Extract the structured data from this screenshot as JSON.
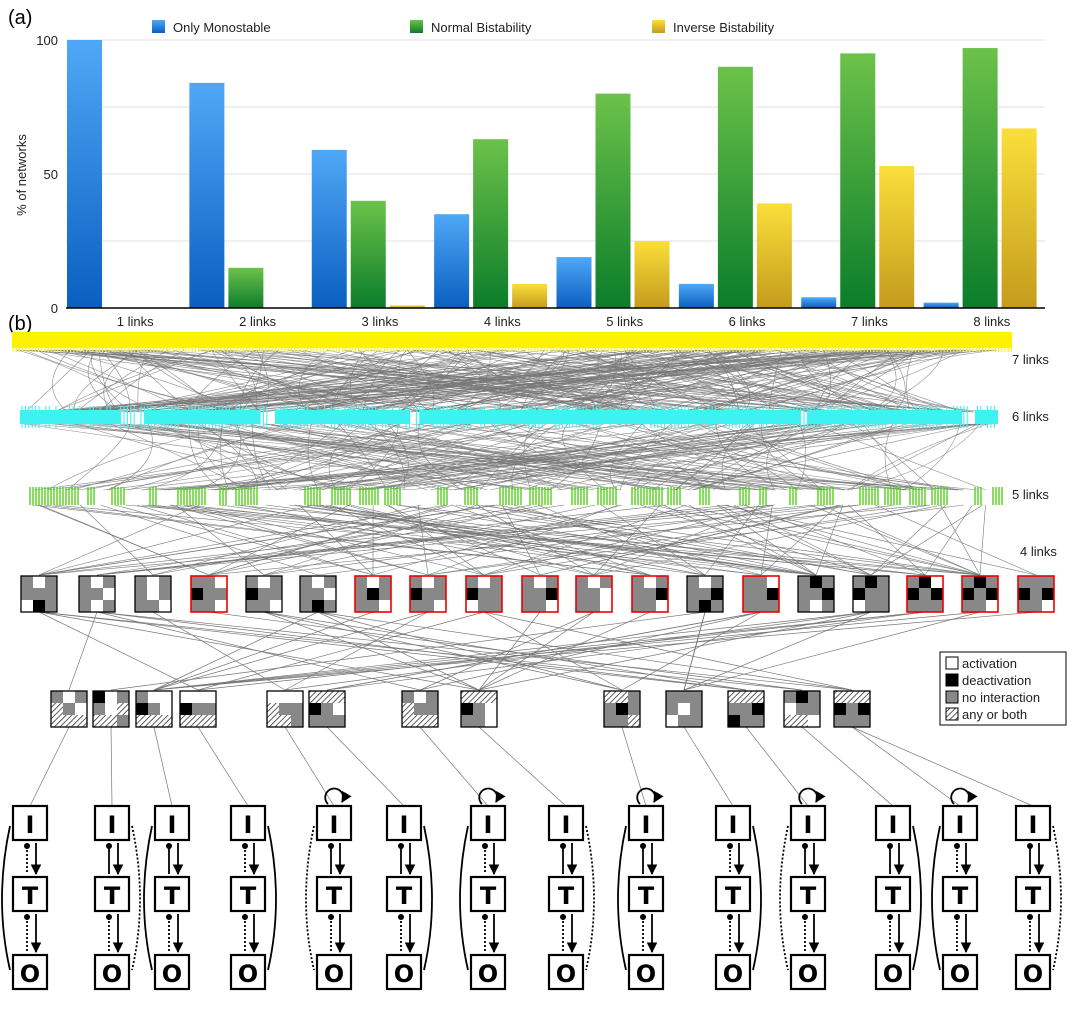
{
  "panel_labels": {
    "a": "(a)",
    "b": "(b)"
  },
  "chart_data": {
    "type": "bar",
    "categories": [
      "1 links",
      "2 links",
      "3 links",
      "4 links",
      "5 links",
      "6 links",
      "7 links",
      "8 links"
    ],
    "series": [
      {
        "name": "Only Monostable",
        "values": [
          100,
          84,
          59,
          35,
          19,
          9,
          4,
          2
        ]
      },
      {
        "name": "Normal Bistability",
        "values": [
          0,
          15,
          40,
          63,
          80,
          90,
          95,
          97
        ]
      },
      {
        "name": "Inverse Bistability",
        "values": [
          0,
          0,
          1,
          9,
          25,
          39,
          53,
          67
        ]
      }
    ],
    "ylabel": "% of networks",
    "ylim": [
      0,
      100
    ],
    "yticks": [
      "0",
      "50",
      "100"
    ],
    "grid": true,
    "legend_position": "top",
    "colors": {
      "Only Monostable": [
        "#4fa8f7",
        "#0a5fc0"
      ],
      "Normal Bistability": [
        "#6cc24a",
        "#0b7d2a"
      ],
      "Inverse Bistability": [
        "#fadf3a",
        "#c59b1d"
      ]
    }
  },
  "network": {
    "levels": [
      "7 links",
      "6 links",
      "5 links",
      "4 links"
    ],
    "legend": [
      "activation",
      "deactivation",
      "no interaction",
      "any or both"
    ],
    "colors": {
      "7 links": "#fff200",
      "6 links": "#3ff2f2",
      "5 links": "#55d11a",
      "edge": "#777777"
    },
    "motif_nodes": [
      "I",
      "T",
      "O"
    ]
  }
}
